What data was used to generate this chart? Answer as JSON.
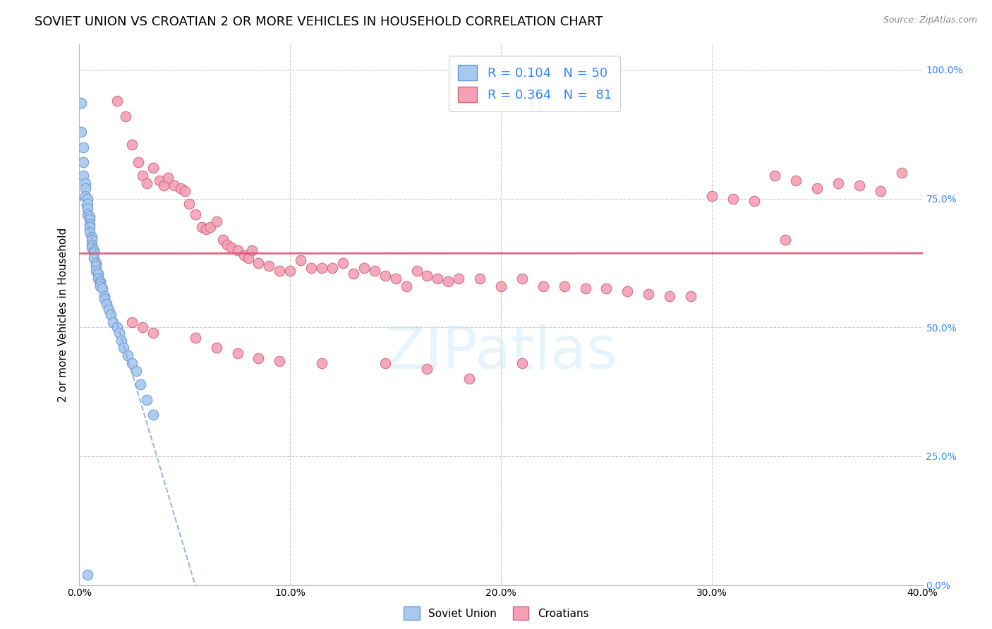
{
  "title": "SOVIET UNION VS CROATIAN 2 OR MORE VEHICLES IN HOUSEHOLD CORRELATION CHART",
  "source": "Source: ZipAtlas.com",
  "ylabel": "2 or more Vehicles in Household",
  "xlim": [
    0.0,
    0.4
  ],
  "ylim": [
    0.0,
    1.05
  ],
  "xlabel_ticks_vals": [
    0.0,
    0.1,
    0.2,
    0.3,
    0.4
  ],
  "xlabel_ticks_labels": [
    "0.0%",
    "10.0%",
    "20.0%",
    "30.0%",
    "40.0%"
  ],
  "ylabel_ticks_vals": [
    0.0,
    0.25,
    0.5,
    0.75,
    1.0
  ],
  "ylabel_ticks_labels": [
    "0.0%",
    "25.0%",
    "50.0%",
    "75.0%",
    "100.0%"
  ],
  "soviet_x": [
    0.001,
    0.001,
    0.002,
    0.002,
    0.002,
    0.003,
    0.003,
    0.003,
    0.004,
    0.004,
    0.004,
    0.004,
    0.005,
    0.005,
    0.005,
    0.005,
    0.005,
    0.006,
    0.006,
    0.006,
    0.006,
    0.007,
    0.007,
    0.007,
    0.008,
    0.008,
    0.008,
    0.009,
    0.009,
    0.01,
    0.01,
    0.01,
    0.011,
    0.012,
    0.012,
    0.013,
    0.014,
    0.015,
    0.016,
    0.018,
    0.019,
    0.02,
    0.021,
    0.023,
    0.025,
    0.027,
    0.029,
    0.032,
    0.035,
    0.004
  ],
  "soviet_y": [
    0.935,
    0.88,
    0.85,
    0.82,
    0.795,
    0.78,
    0.77,
    0.755,
    0.75,
    0.74,
    0.73,
    0.72,
    0.715,
    0.71,
    0.7,
    0.695,
    0.685,
    0.675,
    0.67,
    0.66,
    0.655,
    0.65,
    0.645,
    0.635,
    0.625,
    0.62,
    0.61,
    0.605,
    0.595,
    0.59,
    0.585,
    0.58,
    0.575,
    0.56,
    0.555,
    0.545,
    0.535,
    0.525,
    0.51,
    0.5,
    0.49,
    0.475,
    0.46,
    0.445,
    0.43,
    0.415,
    0.39,
    0.36,
    0.33,
    0.02
  ],
  "croatian_x": [
    0.018,
    0.022,
    0.025,
    0.028,
    0.03,
    0.032,
    0.035,
    0.038,
    0.04,
    0.042,
    0.045,
    0.048,
    0.05,
    0.052,
    0.055,
    0.058,
    0.06,
    0.062,
    0.065,
    0.068,
    0.07,
    0.072,
    0.075,
    0.078,
    0.08,
    0.082,
    0.085,
    0.09,
    0.095,
    0.1,
    0.105,
    0.11,
    0.115,
    0.12,
    0.125,
    0.13,
    0.135,
    0.14,
    0.145,
    0.15,
    0.155,
    0.16,
    0.165,
    0.17,
    0.175,
    0.18,
    0.19,
    0.2,
    0.21,
    0.22,
    0.23,
    0.24,
    0.25,
    0.26,
    0.27,
    0.28,
    0.29,
    0.3,
    0.31,
    0.32,
    0.33,
    0.34,
    0.35,
    0.36,
    0.37,
    0.38,
    0.39,
    0.025,
    0.03,
    0.035,
    0.055,
    0.065,
    0.075,
    0.085,
    0.095,
    0.115,
    0.145,
    0.165,
    0.185,
    0.335,
    0.21
  ],
  "croatian_y": [
    0.94,
    0.91,
    0.855,
    0.82,
    0.795,
    0.78,
    0.81,
    0.785,
    0.775,
    0.79,
    0.775,
    0.77,
    0.765,
    0.74,
    0.72,
    0.695,
    0.69,
    0.695,
    0.705,
    0.67,
    0.66,
    0.655,
    0.65,
    0.64,
    0.635,
    0.65,
    0.625,
    0.62,
    0.61,
    0.61,
    0.63,
    0.615,
    0.615,
    0.615,
    0.625,
    0.605,
    0.615,
    0.61,
    0.6,
    0.595,
    0.58,
    0.61,
    0.6,
    0.595,
    0.59,
    0.595,
    0.595,
    0.58,
    0.595,
    0.58,
    0.58,
    0.575,
    0.575,
    0.57,
    0.565,
    0.56,
    0.56,
    0.755,
    0.75,
    0.745,
    0.795,
    0.785,
    0.77,
    0.78,
    0.775,
    0.765,
    0.8,
    0.51,
    0.5,
    0.49,
    0.48,
    0.46,
    0.45,
    0.44,
    0.435,
    0.43,
    0.43,
    0.42,
    0.4,
    0.67,
    0.43
  ],
  "watermark_text": "ZIPatlas",
  "scatter_size": 110,
  "soviet_color": "#a8c8f0",
  "soviet_edge_color": "#6699cc",
  "croatian_color": "#f5a0b5",
  "croatian_edge_color": "#cc6680",
  "soviet_line_color": "#88aadd",
  "croatian_line_color": "#dd5577",
  "grid_color": "#cccccc",
  "title_fontsize": 13,
  "axis_label_fontsize": 11,
  "tick_fontsize": 10,
  "right_tick_color": "#3388ff",
  "background_color": "#ffffff"
}
